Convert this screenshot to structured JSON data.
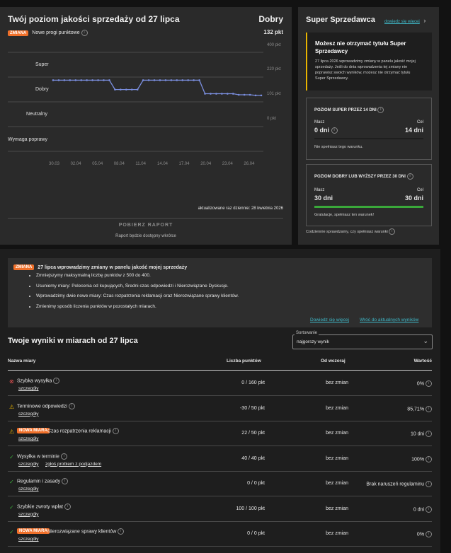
{
  "quality": {
    "title": "Twój poziom jakości sprzedaży od 27 lipca",
    "level": "Dobry",
    "points": "132 pkt",
    "badge": "ZMIANA",
    "new_thresholds": "Nowe progi punktowe",
    "y_labels": [
      "Super",
      "Dobry",
      "Neutralny",
      "Wymaga poprawy"
    ],
    "right_labels": [
      "400 pkt",
      "220 pkt",
      "101 pkt",
      "0 pkt"
    ],
    "x_ticks": [
      "30.03",
      "02.04",
      "05.04",
      "08.04",
      "11.04",
      "14.04",
      "17.04",
      "20.04",
      "23.04",
      "26.04"
    ],
    "updated": "aktualizowane raz dziennie: 28 kwietnia 2026",
    "download": "POBIERZ RAPORT",
    "download_note": "Raport będzie dostępny wkrótce"
  },
  "chart_data": {
    "type": "line",
    "series": [
      {
        "values": [
          205,
          205,
          205,
          205,
          205,
          205,
          205,
          205,
          205,
          205,
          205,
          160,
          160,
          160,
          160,
          160,
          205,
          205,
          205,
          205,
          205,
          205,
          205,
          205,
          205,
          205,
          205,
          140,
          140,
          140,
          140,
          140,
          140,
          135,
          135,
          135,
          132,
          132
        ]
      }
    ],
    "ylim": [
      0,
      400
    ],
    "thresholds": [
      400,
      220,
      101,
      0
    ],
    "color": "#7b8fe0"
  },
  "super": {
    "title": "Super Sprzedawca",
    "link": "dowiedz się więcej",
    "warn_title": "Możesz nie otrzymać tytułu Super Sprzedawcy",
    "warn_text": "27 lipca 2026 wprowadzimy zmiany w panelu jakość mojej sprzedaży. Jeśli do dnia wprowadzenia tej zmiany nie poprawisz swoich wyników, możesz nie otrzymać tytułu Super Sprzedawcy.",
    "card1": {
      "title": "POZIOM SUPER PRZEZ 14 DNI",
      "have_label": "Masz",
      "have": "0 dni",
      "goal_label": "Cel",
      "goal": "14 dni",
      "status": "Nie spełniasz tego warunku.",
      "progress": 0
    },
    "card2": {
      "title": "POZIOM DOBRY LUB WYŻSZY PRZEZ 30 DNI",
      "have_label": "Masz",
      "have": "30 dni",
      "goal_label": "Cel",
      "goal": "30 dni",
      "status": "Gratulacje, spełniasz ten warunek!",
      "progress": 1
    },
    "footer": "Codziennie sprawdzamy, czy spełniasz warunki"
  },
  "notice": {
    "badge": "ZMIANA",
    "title": "27 lipca wprowadzimy zmiany w panelu jakość mojej sprzedaży",
    "items": [
      "Zmniejszymy maksymalną liczbę punktów z 500 do 400.",
      "Usuniemy miary: Polecenia od kupujących, Średni czas odpowiedzi i Nierozwiązane Dyskusje.",
      "Wprowadzimy dwie nowe miary: Czas rozpatrzenia reklamacji oraz Nierozwiązane sprawy klientów.",
      "Zmienimy sposób liczenia punktów w pozostałych miarach."
    ],
    "link1": "Dowiedz się więcej",
    "link2": "Wróć do aktualnych wyników"
  },
  "results": {
    "title": "Twoje wyniki w miarach od 27 lipca",
    "sort_label": "Sortowanie",
    "sort_value": "najgorszy wynik",
    "columns": [
      "Nazwa miary",
      "Liczba punktów",
      "Od wczoraj",
      "Wartość"
    ],
    "rows": [
      {
        "icon": "error-icon",
        "name": "Szybka wysyłka",
        "badge": "",
        "link1": "szczegóły",
        "link2": "",
        "points": "0 / 160 pkt",
        "change": "bez zmian",
        "value": "0%"
      },
      {
        "icon": "warning-icon",
        "name": "Terminowe odpowiedzi",
        "badge": "",
        "link1": "szczegóły",
        "link2": "",
        "points": "-30 / 50 pkt",
        "change": "bez zmian",
        "value": "85,71%"
      },
      {
        "icon": "warning-icon",
        "name": "Czas rozpatrzenia reklamacji",
        "badge": "NOWA MIARA",
        "link1": "szczegóły",
        "link2": "",
        "points": "22 / 50 pkt",
        "change": "bez zmian",
        "value": "10 dni"
      },
      {
        "icon": "check-icon",
        "name": "Wysyłka w terminie",
        "badge": "",
        "link1": "szczegóły",
        "link2": "zgłoś problem z podjazdem",
        "points": "40 / 40 pkt",
        "change": "bez zmian",
        "value": "100%"
      },
      {
        "icon": "check-icon",
        "name": "Regulamin i zasady",
        "badge": "",
        "link1": "szczegóły",
        "link2": "",
        "points": "0 / 0 pkt",
        "change": "bez zmian",
        "value": "Brak naruszeń regulaminu"
      },
      {
        "icon": "check-icon",
        "name": "Szybkie zwroty wpłat",
        "badge": "",
        "link1": "szczegóły",
        "link2": "",
        "points": "100 / 100 pkt",
        "change": "bez zmian",
        "value": "0 dni"
      },
      {
        "icon": "check-icon",
        "name": "Nierozwiązane sprawy klientów",
        "badge": "NOWA MIARA",
        "link1": "szczegóły",
        "link2": "",
        "points": "0 / 0 pkt",
        "change": "bez zmian",
        "value": "0%"
      }
    ]
  },
  "colors": {
    "accent": "#3fb9c9",
    "badge": "#f0702a",
    "warn": "#e8b400",
    "ok": "#3aa83a",
    "error": "#e05050"
  }
}
